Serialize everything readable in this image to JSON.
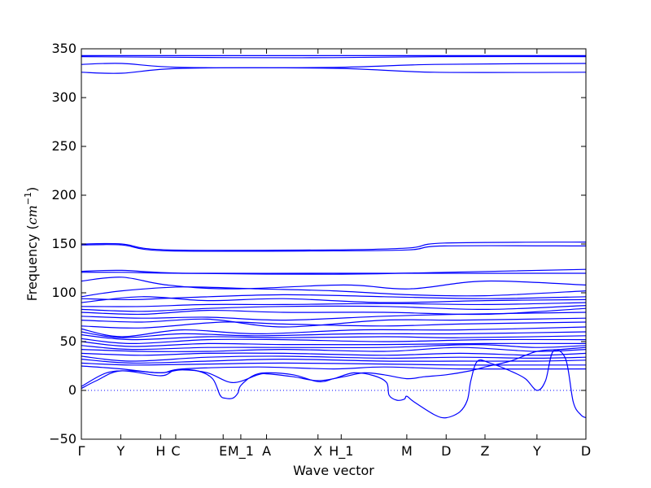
{
  "chart_data": {
    "type": "line",
    "title": "",
    "xlabel": "Wave vector",
    "ylabel_text": "Frequency (",
    "ylabel_unit_base": "cm",
    "ylabel_unit_exp": "−1",
    "ylabel_close": ")",
    "ylim": [
      -50,
      350
    ],
    "yticks": [
      -50,
      0,
      50,
      100,
      150,
      200,
      250,
      300,
      350
    ],
    "xticks": [
      {
        "label": "Γ",
        "x": 0.0
      },
      {
        "label": "Y",
        "x": 0.078
      },
      {
        "label": "H",
        "x": 0.157
      },
      {
        "label": "C",
        "x": 0.187
      },
      {
        "label": "E",
        "x": 0.281
      },
      {
        "label": "M_1",
        "x": 0.316
      },
      {
        "label": "A",
        "x": 0.367
      },
      {
        "label": "X",
        "x": 0.469
      },
      {
        "label": "H_1",
        "x": 0.515
      },
      {
        "label": "M",
        "x": 0.645
      },
      {
        "label": "D",
        "x": 0.723
      },
      {
        "label": "Z",
        "x": 0.8
      },
      {
        "label": "Y",
        "x": 0.903
      },
      {
        "label": "D",
        "x": 1.0
      }
    ],
    "zero_line": {
      "y": 0,
      "style": "dotted",
      "color": "#0000ff"
    },
    "series_color": "#0000ff",
    "series": [
      {
        "points": [
          [
            0,
            343
          ],
          [
            0.3,
            343
          ],
          [
            0.7,
            343
          ],
          [
            1,
            343
          ]
        ]
      },
      {
        "points": [
          [
            0,
            342
          ],
          [
            0.3,
            341
          ],
          [
            0.5,
            341
          ],
          [
            0.7,
            342
          ],
          [
            1,
            342
          ]
        ]
      },
      {
        "points": [
          [
            0,
            334
          ],
          [
            0.08,
            335
          ],
          [
            0.2,
            331
          ],
          [
            0.5,
            331
          ],
          [
            0.7,
            334
          ],
          [
            1,
            335
          ]
        ]
      },
      {
        "points": [
          [
            0,
            326
          ],
          [
            0.08,
            325
          ],
          [
            0.2,
            330
          ],
          [
            0.5,
            330
          ],
          [
            0.7,
            326
          ],
          [
            1,
            326
          ]
        ]
      },
      {
        "points": [
          [
            0,
            150
          ],
          [
            0.08,
            150
          ],
          [
            0.17,
            144
          ],
          [
            0.5,
            144
          ],
          [
            0.65,
            146
          ],
          [
            0.72,
            151
          ],
          [
            1,
            152
          ]
        ]
      },
      {
        "points": [
          [
            0,
            149
          ],
          [
            0.08,
            149
          ],
          [
            0.17,
            143
          ],
          [
            0.5,
            143
          ],
          [
            0.65,
            144
          ],
          [
            0.72,
            148
          ],
          [
            1,
            148
          ]
        ]
      },
      {
        "points": [
          [
            0,
            122
          ],
          [
            0.08,
            123
          ],
          [
            0.2,
            120
          ],
          [
            0.5,
            119
          ],
          [
            0.72,
            121
          ],
          [
            1,
            124
          ]
        ]
      },
      {
        "points": [
          [
            0,
            121
          ],
          [
            0.08,
            121
          ],
          [
            0.2,
            120
          ],
          [
            0.5,
            120
          ],
          [
            0.72,
            120
          ],
          [
            1,
            120
          ]
        ]
      },
      {
        "points": [
          [
            0,
            112
          ],
          [
            0.08,
            116
          ],
          [
            0.17,
            108
          ],
          [
            0.3,
            104
          ],
          [
            0.52,
            108
          ],
          [
            0.65,
            104
          ],
          [
            0.8,
            112
          ],
          [
            1,
            108
          ]
        ]
      },
      {
        "points": [
          [
            0,
            96
          ],
          [
            0.08,
            102
          ],
          [
            0.2,
            106
          ],
          [
            0.35,
            104
          ],
          [
            0.5,
            102
          ],
          [
            0.65,
            98
          ],
          [
            0.8,
            97
          ],
          [
            1,
            102
          ]
        ]
      },
      {
        "points": [
          [
            0,
            94
          ],
          [
            0.1,
            93
          ],
          [
            0.2,
            95
          ],
          [
            0.4,
            98
          ],
          [
            0.6,
            96
          ],
          [
            0.8,
            94
          ],
          [
            1,
            96
          ]
        ]
      },
      {
        "points": [
          [
            0,
            90
          ],
          [
            0.12,
            96
          ],
          [
            0.25,
            92
          ],
          [
            0.4,
            94
          ],
          [
            0.6,
            90
          ],
          [
            0.8,
            92
          ],
          [
            1,
            93
          ]
        ]
      },
      {
        "points": [
          [
            0,
            86
          ],
          [
            0.12,
            86
          ],
          [
            0.25,
            88
          ],
          [
            0.4,
            88
          ],
          [
            0.6,
            89
          ],
          [
            0.8,
            88
          ],
          [
            1,
            90
          ]
        ]
      },
      {
        "points": [
          [
            0,
            83
          ],
          [
            0.12,
            81
          ],
          [
            0.25,
            84
          ],
          [
            0.4,
            86
          ],
          [
            0.6,
            86
          ],
          [
            0.8,
            83
          ],
          [
            1,
            87
          ]
        ]
      },
      {
        "points": [
          [
            0,
            80
          ],
          [
            0.12,
            78
          ],
          [
            0.25,
            82
          ],
          [
            0.4,
            80
          ],
          [
            0.6,
            80
          ],
          [
            0.8,
            78
          ],
          [
            1,
            84
          ]
        ]
      },
      {
        "points": [
          [
            0,
            76
          ],
          [
            0.12,
            74
          ],
          [
            0.25,
            75
          ],
          [
            0.4,
            72
          ],
          [
            0.6,
            76
          ],
          [
            0.75,
            78
          ],
          [
            1,
            80
          ]
        ]
      },
      {
        "points": [
          [
            0,
            72
          ],
          [
            0.12,
            70
          ],
          [
            0.25,
            73
          ],
          [
            0.4,
            65
          ],
          [
            0.6,
            72
          ],
          [
            0.75,
            72
          ],
          [
            1,
            74
          ]
        ]
      },
      {
        "points": [
          [
            0,
            66
          ],
          [
            0.12,
            64
          ],
          [
            0.28,
            70
          ],
          [
            0.4,
            68
          ],
          [
            0.6,
            66
          ],
          [
            0.75,
            68
          ],
          [
            1,
            70
          ]
        ]
      },
      {
        "points": [
          [
            0,
            63
          ],
          [
            0.08,
            55
          ],
          [
            0.2,
            62
          ],
          [
            0.35,
            58
          ],
          [
            0.55,
            62
          ],
          [
            0.75,
            62
          ],
          [
            1,
            65
          ]
        ]
      },
      {
        "points": [
          [
            0,
            60
          ],
          [
            0.08,
            54
          ],
          [
            0.2,
            58
          ],
          [
            0.35,
            56
          ],
          [
            0.55,
            58
          ],
          [
            0.75,
            58
          ],
          [
            1,
            60
          ]
        ]
      },
      {
        "points": [
          [
            0,
            57
          ],
          [
            0.1,
            52
          ],
          [
            0.25,
            55
          ],
          [
            0.4,
            54
          ],
          [
            0.6,
            55
          ],
          [
            0.75,
            54
          ],
          [
            1,
            56
          ]
        ]
      },
      {
        "points": [
          [
            0,
            53
          ],
          [
            0.1,
            48
          ],
          [
            0.25,
            52
          ],
          [
            0.4,
            52
          ],
          [
            0.6,
            50
          ],
          [
            0.8,
            52
          ],
          [
            1,
            52
          ]
        ]
      },
      {
        "points": [
          [
            0,
            50
          ],
          [
            0.1,
            45
          ],
          [
            0.25,
            48
          ],
          [
            0.4,
            47
          ],
          [
            0.6,
            47
          ],
          [
            0.8,
            48
          ],
          [
            1,
            48
          ]
        ]
      },
      {
        "points": [
          [
            0,
            46
          ],
          [
            0.1,
            42
          ],
          [
            0.25,
            44
          ],
          [
            0.4,
            44
          ],
          [
            0.6,
            44
          ],
          [
            0.78,
            47
          ],
          [
            0.9,
            44
          ],
          [
            1,
            46
          ]
        ]
      },
      {
        "points": [
          [
            0,
            42
          ],
          [
            0.12,
            40
          ],
          [
            0.25,
            40
          ],
          [
            0.4,
            42
          ],
          [
            0.6,
            40
          ],
          [
            0.75,
            44
          ],
          [
            0.9,
            40
          ],
          [
            1,
            42
          ]
        ]
      },
      {
        "points": [
          [
            0,
            38
          ],
          [
            0.12,
            36
          ],
          [
            0.25,
            38
          ],
          [
            0.4,
            38
          ],
          [
            0.6,
            36
          ],
          [
            0.75,
            38
          ],
          [
            0.9,
            36
          ],
          [
            1,
            38
          ]
        ]
      },
      {
        "points": [
          [
            0,
            35
          ],
          [
            0.1,
            30
          ],
          [
            0.25,
            34
          ],
          [
            0.4,
            35
          ],
          [
            0.6,
            33
          ],
          [
            0.75,
            34
          ],
          [
            0.9,
            33
          ],
          [
            1,
            34
          ]
        ]
      },
      {
        "points": [
          [
            0,
            32
          ],
          [
            0.1,
            28
          ],
          [
            0.25,
            30
          ],
          [
            0.4,
            32
          ],
          [
            0.6,
            30
          ],
          [
            0.75,
            30
          ],
          [
            0.9,
            30
          ],
          [
            1,
            31
          ]
        ]
      },
      {
        "points": [
          [
            0,
            28
          ],
          [
            0.1,
            26
          ],
          [
            0.25,
            27
          ],
          [
            0.4,
            28
          ],
          [
            0.6,
            27
          ],
          [
            0.75,
            26
          ],
          [
            0.9,
            26
          ],
          [
            1,
            26
          ]
        ]
      },
      {
        "points": [
          [
            0,
            25
          ],
          [
            0.08,
            22
          ],
          [
            0.157,
            18
          ],
          [
            0.2,
            22
          ],
          [
            0.35,
            24
          ],
          [
            0.5,
            22
          ],
          [
            0.6,
            24
          ],
          [
            0.75,
            22
          ],
          [
            1,
            22
          ]
        ]
      },
      {
        "points": [
          [
            0,
            2
          ],
          [
            0.03,
            10
          ],
          [
            0.078,
            20
          ],
          [
            0.157,
            15
          ],
          [
            0.187,
            21
          ],
          [
            0.23,
            20
          ],
          [
            0.26,
            12
          ],
          [
            0.275,
            -5
          ],
          [
            0.285,
            -8
          ],
          [
            0.3,
            -8
          ],
          [
            0.31,
            -3
          ],
          [
            0.316,
            5
          ],
          [
            0.34,
            15
          ],
          [
            0.367,
            18
          ],
          [
            0.42,
            16
          ],
          [
            0.469,
            9
          ],
          [
            0.5,
            12
          ],
          [
            0.54,
            18
          ],
          [
            0.58,
            15
          ],
          [
            0.605,
            8
          ],
          [
            0.61,
            -5
          ],
          [
            0.625,
            -10
          ],
          [
            0.64,
            -9
          ],
          [
            0.645,
            -6
          ],
          [
            0.66,
            -12
          ],
          [
            0.7,
            -25
          ],
          [
            0.723,
            -28
          ],
          [
            0.75,
            -22
          ],
          [
            0.765,
            -10
          ],
          [
            0.772,
            10
          ],
          [
            0.785,
            30
          ],
          [
            0.81,
            28
          ],
          [
            0.85,
            20
          ],
          [
            0.88,
            12
          ],
          [
            0.903,
            0
          ],
          [
            0.92,
            10
          ],
          [
            0.935,
            40
          ],
          [
            0.96,
            32
          ],
          [
            0.975,
            -12
          ],
          [
            0.99,
            -25
          ],
          [
            1,
            -28
          ]
        ]
      },
      {
        "points": [
          [
            0,
            4
          ],
          [
            0.05,
            18
          ],
          [
            0.1,
            20
          ],
          [
            0.157,
            18
          ],
          [
            0.2,
            21
          ],
          [
            0.25,
            18
          ],
          [
            0.3,
            8
          ],
          [
            0.35,
            16
          ],
          [
            0.367,
            17
          ],
          [
            0.42,
            14
          ],
          [
            0.469,
            10
          ],
          [
            0.52,
            14
          ],
          [
            0.56,
            18
          ],
          [
            0.6,
            16
          ],
          [
            0.645,
            12
          ],
          [
            0.68,
            14
          ],
          [
            0.723,
            16
          ],
          [
            0.77,
            20
          ],
          [
            0.8,
            24
          ],
          [
            0.85,
            30
          ],
          [
            0.903,
            40
          ],
          [
            0.95,
            42
          ],
          [
            1,
            44
          ]
        ]
      }
    ]
  }
}
